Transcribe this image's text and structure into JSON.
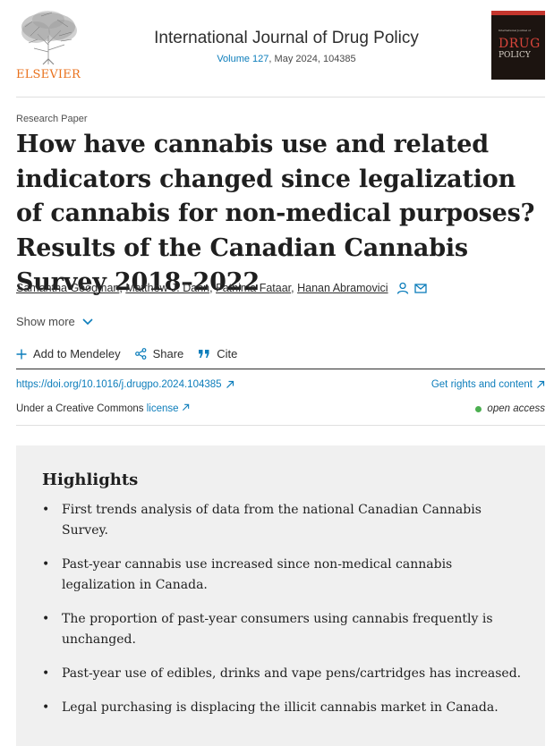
{
  "header": {
    "publisher": "ELSEVIER",
    "journal_title": "International Journal of Drug Policy",
    "issue_link": "Volume 127",
    "issue_rest": ", May 2024, 104385",
    "cover": {
      "line1": "International Journal of",
      "line2": "DRUG",
      "line3": "POLICY"
    }
  },
  "article": {
    "type": "Research Paper",
    "title": "How have cannabis use and related indicators changed since legalization of cannabis for non-medical purposes? Results of the Canadian Cannabis Survey 2018–2022",
    "authors": [
      "Samantha Goodman",
      "Matthew J. Dann",
      "Fathima Fataar",
      "Hanan Abramovici"
    ],
    "show_more": "Show more"
  },
  "actions": {
    "mendeley": "Add to Mendeley",
    "share": "Share",
    "cite": "Cite"
  },
  "links": {
    "doi": "https://doi.org/10.1016/j.drugpo.2024.104385",
    "rights": "Get rights and content",
    "license_prefix": "Under a Creative Commons ",
    "license_link": "license",
    "open_access": "open access"
  },
  "highlights": {
    "title": "Highlights",
    "bullet": "•",
    "items": [
      "First trends analysis of data from the national Canadian Cannabis Survey.",
      "Past-year cannabis use increased since non-medical cannabis legalization in Canada.",
      "The proportion of past-year consumers using cannabis frequently is unchanged.",
      "Past-year use of edibles, drinks and vape pens/cartridges has increased.",
      "Legal purchasing is displacing the illicit cannabis market in Canada."
    ]
  },
  "colors": {
    "link": "#0c7dbb",
    "publisher": "#e9711c",
    "open_access_dot": "#4caf50"
  }
}
